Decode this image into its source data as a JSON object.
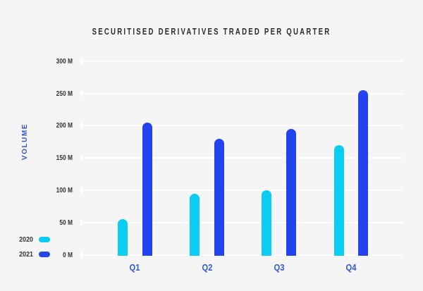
{
  "page": {
    "background": "#f5f5f6"
  },
  "chart_data": {
    "type": "bar",
    "title": "SECURITISED DERIVATIVES TRADED PER QUARTER",
    "ylabel": "VOLUME",
    "xlabel": "",
    "categories": [
      "Q1",
      "Q2",
      "Q3",
      "Q4"
    ],
    "series": [
      {
        "name": "2020",
        "color": "#0bcdf2",
        "values": [
          55,
          95,
          100,
          170
        ]
      },
      {
        "name": "2021",
        "color": "#2243ee",
        "values": [
          205,
          180,
          195,
          255
        ]
      }
    ],
    "unit": "M",
    "ylim": [
      0,
      300
    ],
    "yticks": [
      {
        "value": 300,
        "label": "300 M"
      },
      {
        "value": 250,
        "label": "250 M"
      },
      {
        "value": 200,
        "label": "200 M"
      },
      {
        "value": 150,
        "label": "150 M"
      },
      {
        "value": 100,
        "label": "100 M"
      },
      {
        "value": 50,
        "label": "50 M"
      },
      {
        "value": 0,
        "label": "0 M"
      }
    ],
    "grid": true,
    "legend_position": "bottom-left"
  },
  "legend": {
    "items": [
      {
        "label": "2020",
        "color": "#0bcdf2"
      },
      {
        "label": "2021",
        "color": "#2243ee"
      }
    ]
  },
  "colors": {
    "background": "#f5f5f6",
    "gridline": "#ffffff",
    "title_text": "#2b2c31",
    "tick_text": "#33343a",
    "axis_accent": "#2e56de"
  }
}
